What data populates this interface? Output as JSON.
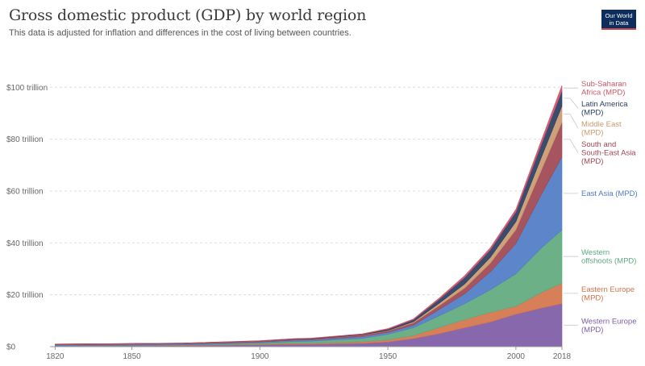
{
  "header": {
    "title": "Gross domestic product (GDP) by world region",
    "subtitle": "This data is adjusted for inflation and differences in the cost of living between countries.",
    "logo_line1": "Our World",
    "logo_line2": "in Data"
  },
  "chart_data": {
    "type": "area",
    "stacked": true,
    "x": [
      1820,
      1850,
      1870,
      1900,
      1913,
      1920,
      1940,
      1950,
      1960,
      1970,
      1980,
      1990,
      2000,
      2010,
      2018
    ],
    "xticks": [
      1820,
      1850,
      1900,
      1950,
      2000,
      2018
    ],
    "yticks": [
      {
        "value": 0,
        "label": "$0"
      },
      {
        "value": 20,
        "label": "$20 trillion"
      },
      {
        "value": 40,
        "label": "$40 trillion"
      },
      {
        "value": 60,
        "label": "$60 trillion"
      },
      {
        "value": 80,
        "label": "$80 trillion"
      },
      {
        "value": 100,
        "label": "$100 trillion"
      }
    ],
    "xlim": [
      1818,
      2018
    ],
    "ylim": [
      0,
      115
    ],
    "grid": true,
    "unit": "trillion international-$",
    "series": [
      {
        "name": "Western Europe (MPD)",
        "label_lines": [
          "Western Europe",
          "(MPD)"
        ],
        "color": "#7d5ba6",
        "values": [
          0.2,
          0.3,
          0.4,
          0.7,
          0.9,
          0.9,
          1.3,
          1.8,
          3.1,
          5.0,
          7.3,
          9.5,
          12.5,
          14.9,
          16.6
        ]
      },
      {
        "name": "Eastern Europe (MPD)",
        "label_lines": [
          "Eastern Europe",
          "(MPD)"
        ],
        "color": "#d2744a",
        "values": [
          0.1,
          0.15,
          0.2,
          0.3,
          0.4,
          0.4,
          0.6,
          0.8,
          1.2,
          2.4,
          3.1,
          3.7,
          3.1,
          6.0,
          7.9
        ]
      },
      {
        "name": "Western offshoots (MPD)",
        "label_lines": [
          "Western",
          "offshoots (MPD)"
        ],
        "color": "#5ea97d",
        "values": [
          0.03,
          0.06,
          0.1,
          0.4,
          0.7,
          0.8,
          1.3,
          2.2,
          3.0,
          4.5,
          6.2,
          8.7,
          12.5,
          17.2,
          20.5
        ]
      },
      {
        "name": "East Asia (MPD)",
        "label_lines": [
          "East Asia (MPD)"
        ],
        "color": "#4f7cc5",
        "values": [
          0.4,
          0.4,
          0.35,
          0.4,
          0.45,
          0.5,
          0.7,
          0.7,
          1.0,
          2.4,
          3.8,
          6.9,
          11.7,
          20.7,
          28.2
        ]
      },
      {
        "name": "South and South-East Asia (MPD)",
        "label_lines": [
          "South and",
          "South-East Asia",
          "(MPD)"
        ],
        "color": "#9e4652",
        "values": [
          0.23,
          0.25,
          0.25,
          0.3,
          0.35,
          0.35,
          0.5,
          0.6,
          0.9,
          1.5,
          2.2,
          3.4,
          5.3,
          9.4,
          13.4
        ]
      },
      {
        "name": "Middle East (MPD)",
        "label_lines": [
          "Middle East",
          "(MPD)"
        ],
        "color": "#c99a6e",
        "values": [
          0.02,
          0.03,
          0.03,
          0.05,
          0.06,
          0.06,
          0.1,
          0.15,
          0.4,
          0.9,
          1.6,
          2.2,
          3.1,
          4.9,
          6.2
        ]
      },
      {
        "name": "Latin America (MPD)",
        "label_lines": [
          "Latin America",
          "(MPD)"
        ],
        "color": "#2a3d63",
        "values": [
          0.02,
          0.03,
          0.04,
          0.1,
          0.15,
          0.2,
          0.3,
          0.5,
          0.8,
          1.5,
          2.5,
          2.9,
          3.8,
          5.0,
          5.9
        ]
      },
      {
        "name": "Sub-Saharan Africa (MPD)",
        "label_lines": [
          "Sub-Saharan",
          "Africa (MPD)"
        ],
        "color": "#cf5468",
        "values": [
          0.02,
          0.03,
          0.04,
          0.06,
          0.08,
          0.09,
          0.15,
          0.2,
          0.3,
          0.5,
          0.7,
          0.8,
          1.0,
          1.6,
          2.0
        ]
      }
    ]
  }
}
